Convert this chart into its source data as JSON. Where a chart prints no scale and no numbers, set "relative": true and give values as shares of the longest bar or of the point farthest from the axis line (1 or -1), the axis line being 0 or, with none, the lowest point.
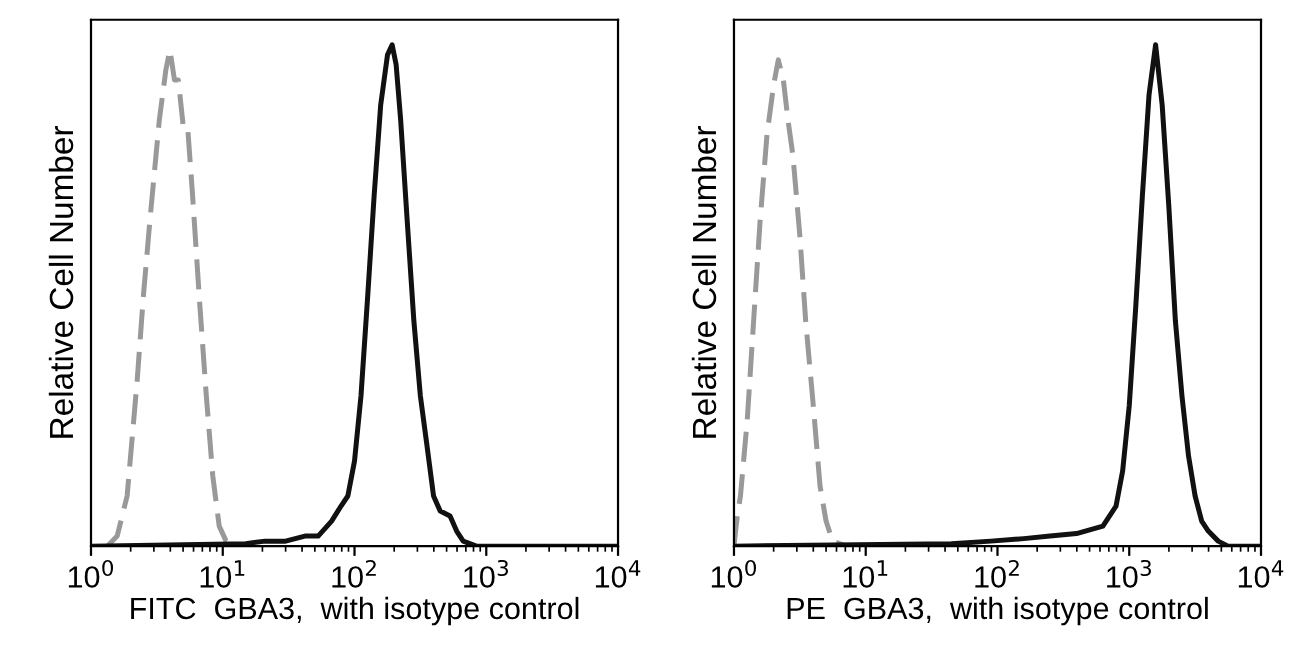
{
  "chart_data": [
    {
      "type": "line",
      "relative": true,
      "log": "x",
      "xlim": [
        1,
        10000
      ],
      "xticks": [
        {
          "value": 1,
          "label": "10$^{0}$"
        },
        {
          "value": 10,
          "label": "10$^{1}$"
        },
        {
          "value": 100,
          "label": "10$^{2}$"
        },
        {
          "value": 1000,
          "label": "10$^{3}$"
        },
        {
          "value": 10000,
          "label": "10$^{4}$"
        }
      ],
      "tick_labels": "x",
      "xlabel": "FITC  GBA3,  with isotype control",
      "ylabel": "Relative Cell Number",
      "grid": false,
      "marker": "none",
      "series": [
        {
          "color": "#999999",
          "line_style": "dashed",
          "x": [
            1.33,
            1.58,
            1.88,
            2.24,
            2.5,
            2.8,
            3.3,
            3.7,
            3.97,
            4.3,
            4.6,
            5.0,
            5.4,
            5.9,
            6.7,
            7.5,
            8.4,
            9.4,
            10.6,
            11.9
          ],
          "values": [
            0,
            0.02,
            0.1,
            0.33,
            0.5,
            0.65,
            0.85,
            0.95,
            0.99,
            0.93,
            0.93,
            0.84,
            0.84,
            0.7,
            0.48,
            0.3,
            0.14,
            0.04,
            0.01,
            0
          ]
        },
        {
          "color": "#111111",
          "line_style": "solid",
          "x": [
            1,
            14.9,
            21,
            30,
            42,
            53,
            67,
            79,
            89,
            100,
            112,
            126,
            141,
            158,
            178,
            193,
            207,
            224,
            251,
            282,
            316,
            355,
            398,
            447,
            531,
            596,
            668,
            841,
            10000
          ],
          "values": [
            0,
            0.005,
            0.01,
            0.01,
            0.02,
            0.02,
            0.05,
            0.08,
            0.1,
            0.17,
            0.3,
            0.5,
            0.7,
            0.88,
            0.98,
            1.0,
            0.96,
            0.85,
            0.65,
            0.45,
            0.3,
            0.2,
            0.1,
            0.07,
            0.06,
            0.03,
            0.01,
            0,
            0
          ]
        }
      ]
    },
    {
      "type": "line",
      "relative": true,
      "log": "x",
      "xlim": [
        1,
        10000
      ],
      "xticks": [
        {
          "value": 1,
          "label": "10$^{0}$"
        },
        {
          "value": 10,
          "label": "10$^{1}$"
        },
        {
          "value": 100,
          "label": "10$^{2}$"
        },
        {
          "value": 1000,
          "label": "10$^{3}$"
        },
        {
          "value": 10000,
          "label": "10$^{4}$"
        }
      ],
      "tick_labels": "x",
      "xlabel": "PE  GBA3,  with isotype control",
      "ylabel": "Relative Cell Number",
      "grid": false,
      "marker": "none",
      "series": [
        {
          "color": "#999999",
          "line_style": "dashed",
          "x": [
            1.0,
            1.06,
            1.12,
            1.26,
            1.41,
            1.58,
            1.78,
            2.0,
            2.17,
            2.37,
            2.57,
            2.8,
            3.16,
            3.5,
            4.0,
            4.5,
            5.0,
            5.6,
            7.1
          ],
          "values": [
            0,
            0.06,
            0.1,
            0.25,
            0.45,
            0.65,
            0.82,
            0.92,
            0.97,
            0.93,
            0.85,
            0.78,
            0.62,
            0.45,
            0.28,
            0.12,
            0.05,
            0.01,
            0
          ]
        },
        {
          "color": "#111111",
          "line_style": "solid",
          "x": [
            1,
            44.7,
            89,
            158,
            251,
            398,
            631,
            794,
            891,
            1000,
            1122,
            1259,
            1413,
            1585,
            1778,
            1995,
            2239,
            2512,
            2818,
            3162,
            3548,
            3981,
            4732,
            5623,
            10000
          ],
          "values": [
            0,
            0.005,
            0.01,
            0.015,
            0.02,
            0.025,
            0.04,
            0.08,
            0.15,
            0.28,
            0.48,
            0.7,
            0.9,
            1.0,
            0.88,
            0.68,
            0.45,
            0.3,
            0.18,
            0.1,
            0.05,
            0.03,
            0.01,
            0,
            0
          ]
        }
      ]
    }
  ]
}
